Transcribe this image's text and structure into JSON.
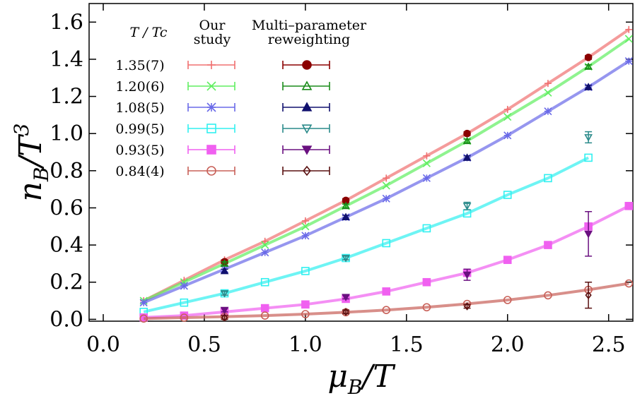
{
  "chart_data": {
    "type": "line",
    "x_label": {
      "base": "μ",
      "sub": "B",
      "rest": "/T"
    },
    "y_label": {
      "base": "n",
      "sub": "B",
      "rest": "/T",
      "sup": "3"
    },
    "legend_title": "T / Tc",
    "our_study_label": [
      "Our",
      "study"
    ],
    "reweighting_label": [
      "Multi–parameter",
      "reweighting"
    ],
    "xlim": [
      -0.07,
      2.62
    ],
    "ylim": [
      -0.01,
      1.7
    ],
    "xticks": [
      {
        "value": 0,
        "label": "0.0"
      },
      0.5,
      {
        "value": 1,
        "label": "1.0"
      },
      1.5,
      {
        "value": 2,
        "label": "2.0"
      },
      2.5
    ],
    "yticks": [
      {
        "value": 0,
        "label": "0.0"
      },
      0.2,
      0.4,
      0.6,
      0.8,
      {
        "value": 1,
        "label": "1.0"
      },
      1.2,
      1.4,
      1.6
    ],
    "x": [
      0.2,
      0.4,
      0.6,
      0.8,
      1.0,
      1.2,
      1.4,
      1.6,
      1.8,
      2.0,
      2.2,
      2.4,
      2.6
    ],
    "series": [
      {
        "name": "1.35(7)",
        "color": "#f07070",
        "marker": "plus",
        "values": [
          0.1,
          0.21,
          0.32,
          0.42,
          0.53,
          0.64,
          0.76,
          0.88,
          1.0,
          1.13,
          1.27,
          1.41,
          1.56
        ]
      },
      {
        "name": "1.20(6)",
        "color": "#60ee60",
        "marker": "x",
        "values": [
          0.1,
          0.2,
          0.3,
          0.4,
          0.5,
          0.61,
          0.72,
          0.84,
          0.96,
          1.09,
          1.22,
          1.36,
          1.51
        ]
      },
      {
        "name": "1.08(5)",
        "color": "#6a6ae8",
        "marker": "star",
        "values": [
          0.09,
          0.18,
          0.27,
          0.36,
          0.45,
          0.55,
          0.65,
          0.76,
          0.87,
          0.99,
          1.12,
          1.25,
          1.39
        ]
      },
      {
        "name": "0.99(5)",
        "color": "#30f0f0",
        "marker": "square-open",
        "values": [
          0.04,
          0.09,
          0.14,
          0.2,
          0.26,
          0.33,
          0.41,
          0.49,
          0.57,
          0.67,
          0.76,
          0.87,
          null
        ]
      },
      {
        "name": "0.93(5)",
        "color": "#f060f0",
        "marker": "square",
        "values": [
          0.01,
          0.02,
          0.04,
          0.06,
          0.08,
          0.11,
          0.15,
          0.2,
          0.25,
          0.32,
          0.4,
          0.5,
          0.61
        ]
      },
      {
        "name": "0.84(4)",
        "color": "#c86058",
        "marker": "circle-open",
        "values": [
          0.004,
          0.009,
          0.014,
          0.02,
          0.028,
          0.038,
          0.05,
          0.065,
          0.083,
          0.104,
          0.129,
          0.159,
          0.193
        ]
      }
    ],
    "reweighting_x": [
      0.6,
      1.2,
      1.8,
      2.4
    ],
    "reweighting_series": [
      {
        "color": "#8b0000",
        "marker": "circle",
        "values": [
          0.31,
          0.64,
          1.0,
          1.41
        ],
        "errors": [
          0.01,
          0.01,
          0.01,
          0.01
        ]
      },
      {
        "color": "#1a8c1a",
        "marker": "tri-up-open",
        "values": [
          0.3,
          0.61,
          0.96,
          1.36
        ],
        "errors": [
          0.01,
          0.01,
          0.01,
          0.01
        ]
      },
      {
        "color": "#10106e",
        "marker": "tri-up",
        "values": [
          0.26,
          0.55,
          0.87,
          1.25
        ],
        "errors": [
          0.01,
          0.01,
          0.01,
          0.01
        ]
      },
      {
        "color": "#2a8a8a",
        "marker": "tri-down-open",
        "values": [
          0.14,
          0.33,
          0.61,
          0.98
        ],
        "errors": [
          0.01,
          0.01,
          0.02,
          0.03
        ]
      },
      {
        "color": "#6a1080",
        "marker": "tri-down",
        "values": [
          0.05,
          0.12,
          0.24,
          0.46
        ],
        "errors": [
          0.01,
          0.01,
          0.03,
          0.12
        ]
      },
      {
        "color": "#5a1010",
        "marker": "diamond-open",
        "values": [
          0.01,
          0.04,
          0.07,
          0.13
        ],
        "errors": [
          0.01,
          0.01,
          0.01,
          0.07
        ]
      }
    ]
  }
}
